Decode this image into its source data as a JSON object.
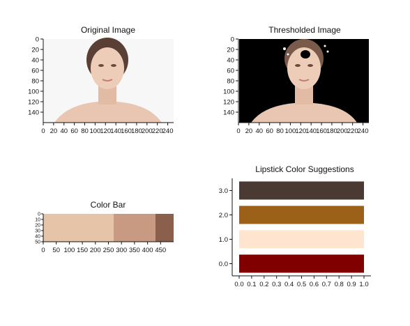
{
  "panels": {
    "original": {
      "title": "Original Image"
    },
    "thresholded": {
      "title": "Thresholded Image"
    },
    "color_bar": {
      "title": "Color Bar"
    },
    "lipstick": {
      "title": "Lipstick Color Suggestions"
    }
  },
  "chart_data": [
    {
      "type": "image",
      "title": "Original Image",
      "xticks": [
        "0",
        "20",
        "40",
        "60",
        "80",
        "100",
        "120",
        "140",
        "160",
        "180",
        "200",
        "220",
        "240"
      ],
      "yticks": [
        "0",
        "20",
        "40",
        "60",
        "80",
        "100",
        "120",
        "140"
      ],
      "xlim": [
        0,
        250
      ],
      "ylim": [
        0,
        160
      ]
    },
    {
      "type": "image",
      "title": "Thresholded Image",
      "xticks": [
        "0",
        "20",
        "40",
        "60",
        "80",
        "100",
        "120",
        "140",
        "160",
        "180",
        "200",
        "220",
        "240"
      ],
      "yticks": [
        "0",
        "20",
        "40",
        "60",
        "80",
        "100",
        "120",
        "140"
      ],
      "xlim": [
        0,
        250
      ],
      "ylim": [
        0,
        160
      ]
    },
    {
      "type": "heatmap",
      "title": "Color Bar",
      "xticks": [
        "0",
        "50",
        "100",
        "150",
        "200",
        "250",
        "300",
        "350",
        "400",
        "450"
      ],
      "yticks": [
        "0",
        "10",
        "20",
        "30",
        "40",
        "50"
      ],
      "xlim": [
        0,
        500
      ],
      "ylim": [
        0,
        50
      ],
      "segments": [
        {
          "start": 0,
          "end": 270,
          "color": "#e6c4a8"
        },
        {
          "start": 270,
          "end": 430,
          "color": "#c99a82"
        },
        {
          "start": 430,
          "end": 500,
          "color": "#8a5f4b"
        }
      ]
    },
    {
      "type": "bar",
      "title": "Lipstick Color Suggestions",
      "orientation": "horizontal",
      "categories": [
        "0.0",
        "1.0",
        "2.0",
        "3.0"
      ],
      "values": [
        1,
        1,
        1,
        1
      ],
      "colors": [
        "#800000",
        "#ffe4cf",
        "#9b6118",
        "#4a3a33"
      ],
      "xlim": [
        0,
        1
      ],
      "ylim": [
        -0.5,
        3.5
      ],
      "xticks": [
        "0.0",
        "0.1",
        "0.2",
        "0.3",
        "0.4",
        "0.5",
        "0.6",
        "0.7",
        "0.8",
        "0.9",
        "1.0"
      ],
      "yticks": [
        "0.0",
        "1.0",
        "2.0",
        "3.0"
      ]
    }
  ]
}
